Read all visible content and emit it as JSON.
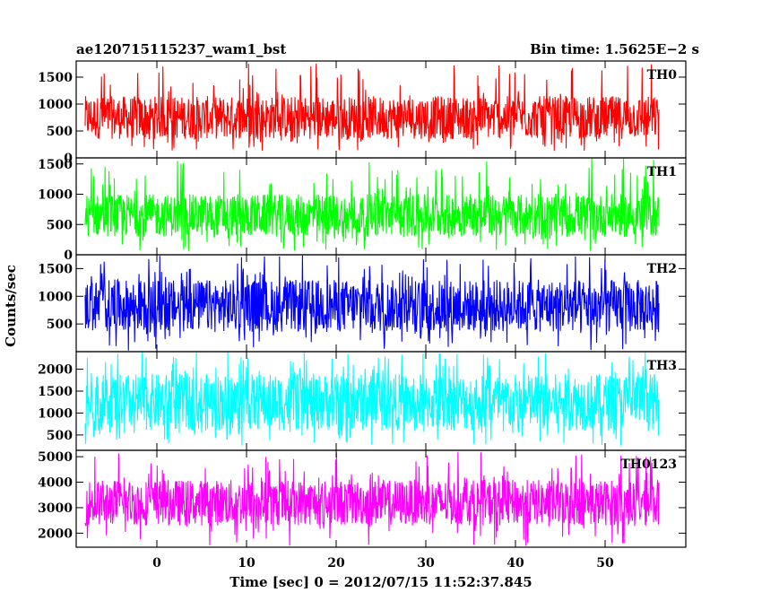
{
  "chart_data": {
    "type": "line",
    "title_left": "ae120715115237_wam1_bst",
    "title_right": "Bin time: 1.5625E−2 s",
    "xlabel": "Time [sec] 0 = 2012/07/15 11:52:37.845",
    "ylabel": "Counts/sec",
    "xlim": [
      -9,
      59
    ],
    "x_data_range": [
      -8,
      56
    ],
    "xticks": [
      0,
      10,
      20,
      30,
      40,
      50
    ],
    "xtick_labels": [
      "0",
      "10",
      "20",
      "30",
      "40",
      "50"
    ],
    "panels": [
      {
        "name": "TH0",
        "color": "#ff0000",
        "ylim": [
          0,
          1800
        ],
        "yticks": [
          0,
          500,
          1000,
          1500
        ],
        "ytick_labels": [
          "0",
          "500",
          "1000",
          "1500"
        ],
        "typical_range": [
          350,
          1150
        ],
        "extreme_range": [
          130,
          1800
        ],
        "mean": 750
      },
      {
        "name": "TH1",
        "color": "#00ff00",
        "ylim": [
          0,
          1600
        ],
        "yticks": [
          0,
          500,
          1000,
          1500
        ],
        "ytick_labels": [
          "0",
          "500",
          "1000",
          "1500"
        ],
        "typical_range": [
          300,
          1000
        ],
        "extreme_range": [
          60,
          1600
        ],
        "mean": 650
      },
      {
        "name": "TH2",
        "color": "#0000ff",
        "ylim": [
          0,
          1750
        ],
        "yticks": [
          500,
          1000,
          1500
        ],
        "ytick_labels": [
          "500",
          "1000",
          "1500"
        ],
        "typical_range": [
          350,
          1300
        ],
        "extreme_range": [
          20,
          1750
        ],
        "mean": 800
      },
      {
        "name": "TH3",
        "color": "#00ffff",
        "ylim": [
          150,
          2400
        ],
        "yticks": [
          500,
          1000,
          1500,
          2000
        ],
        "ytick_labels": [
          "500",
          "1000",
          "1500",
          "2000"
        ],
        "typical_range": [
          600,
          1900
        ],
        "extreme_range": [
          250,
          2400
        ],
        "mean": 1200
      },
      {
        "name": "TH0123",
        "color": "#ff00ff",
        "ylim": [
          1450,
          5250
        ],
        "yticks": [
          2000,
          3000,
          4000,
          5000
        ],
        "ytick_labels": [
          "2000",
          "3000",
          "4000",
          "5000"
        ],
        "typical_range": [
          2300,
          4100
        ],
        "extreme_range": [
          1500,
          5200
        ],
        "mean": 3200
      }
    ]
  }
}
